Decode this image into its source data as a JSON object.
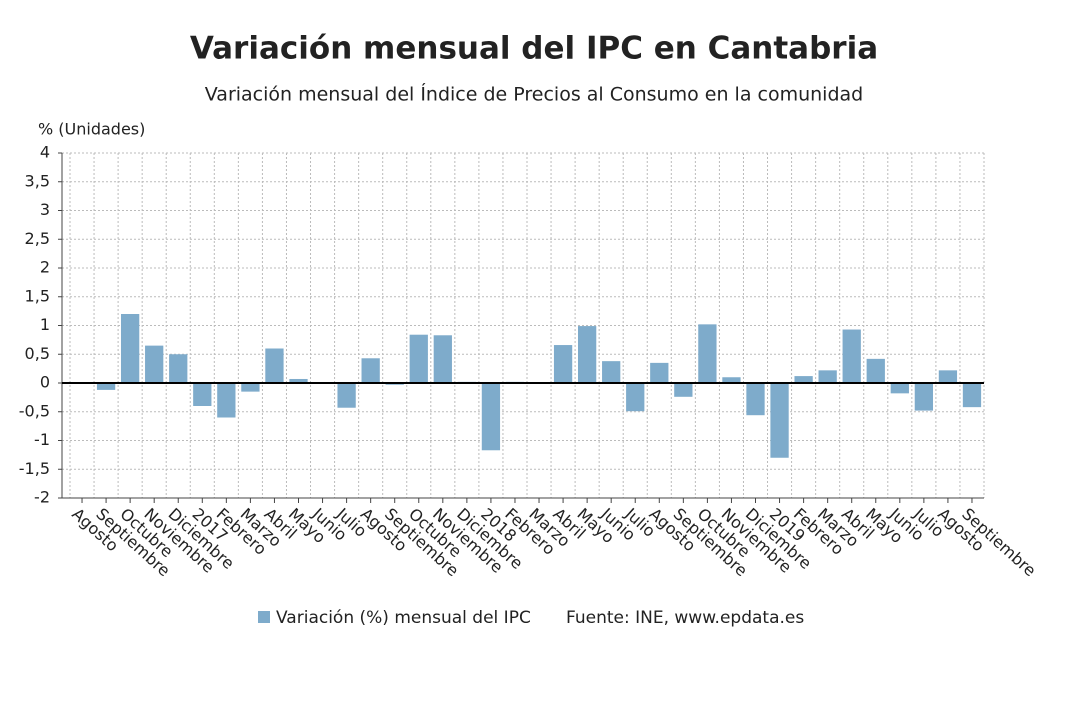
{
  "chart_data": {
    "type": "bar",
    "title": "Variación mensual del IPC en Cantabria",
    "subtitle": "Variación mensual del Índice de Precios al Consumo en la comunidad",
    "y_label": "% (Unidades)",
    "source": "Fuente: INE, www.epdata.es",
    "categories": [
      "Agosto",
      "Septiembre",
      "Octubre",
      "Noviembre",
      "Diciembre",
      "2017",
      "Febrero",
      "Marzo",
      "Abril",
      "Mayo",
      "Junio",
      "Julio",
      "Agosto",
      "Septiembre",
      "Octubre",
      "Noviembre",
      "Diciembre",
      "2018",
      "Febrero",
      "Marzo",
      "Abril",
      "Mayo",
      "Junio",
      "Julio",
      "Agosto",
      "Septiembre",
      "Octubre",
      "Noviembre",
      "Diciembre",
      "2019",
      "Febrero",
      "Marzo",
      "Abril",
      "Mayo",
      "Junio",
      "Julio",
      "Agosto",
      "Septiembre"
    ],
    "series": [
      {
        "name": "Variación (%) mensual del IPC",
        "color": "#7eabcb",
        "values": [
          0,
          -0.12,
          1.2,
          0.65,
          0.5,
          -0.4,
          -0.6,
          -0.15,
          0.6,
          0.07,
          0,
          -0.43,
          0.43,
          -0.03,
          0.84,
          0.83,
          0.02,
          -1.17,
          0.02,
          0,
          0.66,
          0.99,
          0.38,
          -0.49,
          0.35,
          -0.24,
          1.02,
          0.1,
          -0.56,
          -1.3,
          0.12,
          0.22,
          0.93,
          0.42,
          -0.18,
          -0.48,
          0.22,
          -0.42
        ]
      }
    ],
    "ylim": [
      -2,
      4
    ],
    "yticks": [
      -2,
      {
        "value": -1.5,
        "label": "-1,5"
      },
      -1,
      {
        "value": -0.5,
        "label": "-0,5"
      },
      0,
      {
        "value": 0.5,
        "label": "0,5"
      },
      1,
      {
        "value": 1.5,
        "label": "1,5"
      },
      2,
      {
        "value": 2.5,
        "label": "2,5"
      },
      3,
      {
        "value": 3.5,
        "label": "3,5"
      },
      4
    ],
    "grid": true
  }
}
